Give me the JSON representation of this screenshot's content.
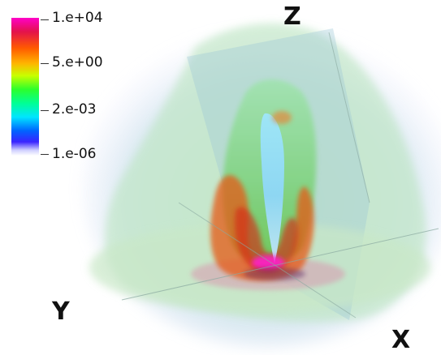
{
  "colorbar": {
    "labels": [
      "1.e+04",
      "5.e+00",
      "2.e-03",
      "1.e-06"
    ]
  },
  "axes": {
    "z": "Z",
    "y": "Y",
    "x": "X"
  }
}
